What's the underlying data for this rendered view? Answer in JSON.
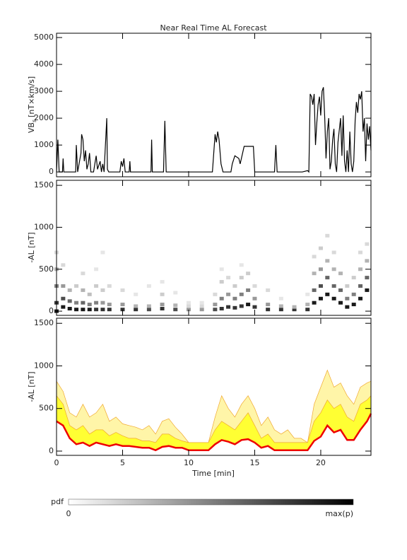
{
  "chart_data": [
    {
      "type": "line",
      "title": "Near Real Time AL Forecast",
      "y_label_main": "VB",
      "y_label_sub": "s",
      "y_label_unit": "[nT×km/s]",
      "color": "#000000",
      "xlim": [
        0,
        23.8
      ],
      "xticks": [
        0,
        5,
        10,
        15,
        20
      ],
      "ylim": [
        -180,
        5160
      ],
      "yticks": [
        0,
        1000,
        2000,
        3000,
        4000,
        5000
      ],
      "x": [
        0,
        0.1,
        0.2,
        0.45,
        0.5,
        0.55,
        1.45,
        1.5,
        1.6,
        1.85,
        1.9,
        2.0,
        2.1,
        2.2,
        2.3,
        2.4,
        2.5,
        2.6,
        2.8,
        2.9,
        3.0,
        3.1,
        3.3,
        3.4,
        3.5,
        3.6,
        3.8,
        3.85,
        3.95,
        4.8,
        4.9,
        5.0,
        5.1,
        5.2,
        5.5,
        5.55,
        5.6,
        7.15,
        7.2,
        7.25,
        8.1,
        8.2,
        8.3,
        11.8,
        12.0,
        12.1,
        12.2,
        12.3,
        12.45,
        12.6,
        13.2,
        13.3,
        13.5,
        13.8,
        13.9,
        14.2,
        14.9,
        15.0,
        15.3,
        16.5,
        16.6,
        16.7,
        18.6,
        19.0,
        19.1,
        19.2,
        19.3,
        19.4,
        19.5,
        19.6,
        19.7,
        19.8,
        19.9,
        20.0,
        20.1,
        20.2,
        20.3,
        20.4,
        20.5,
        20.6,
        20.7,
        20.8,
        20.9,
        21.0,
        21.1,
        21.2,
        21.3,
        21.5,
        21.6,
        21.7,
        21.8,
        21.9,
        22.0,
        22.1,
        22.2,
        22.3,
        22.4,
        22.5,
        22.6,
        22.7,
        22.8,
        22.9,
        23.0,
        23.1,
        23.2,
        23.3,
        23.4,
        23.5,
        23.6,
        23.7,
        23.8
      ],
      "values": [
        0,
        1200,
        0,
        0,
        500,
        0,
        0,
        1000,
        0,
        700,
        1400,
        1200,
        400,
        800,
        100,
        300,
        700,
        0,
        0,
        300,
        600,
        100,
        400,
        0,
        300,
        0,
        2000,
        100,
        0,
        0,
        400,
        200,
        500,
        0,
        0,
        400,
        0,
        0,
        1200,
        0,
        0,
        1900,
        0,
        0,
        1400,
        1100,
        1500,
        1200,
        300,
        0,
        0,
        300,
        600,
        500,
        300,
        950,
        950,
        0,
        0,
        0,
        1000,
        0,
        0,
        50,
        0,
        2900,
        2800,
        2500,
        2900,
        1000,
        1800,
        2500,
        2800,
        2100,
        3000,
        3150,
        2000,
        500,
        1500,
        2000,
        100,
        400,
        1200,
        1600,
        300,
        0,
        1100,
        2000,
        600,
        2100,
        400,
        0,
        800,
        0,
        1500,
        300,
        0,
        400,
        1900,
        2600,
        2200,
        2900,
        2700,
        3000,
        1500,
        2000,
        400,
        1800,
        1200,
        1700,
        800
      ]
    },
    {
      "type": "heatmap",
      "y_label": "-AL [nT]",
      "xlim": [
        0,
        23.8
      ],
      "xticks": [
        0,
        5,
        10,
        15,
        20
      ],
      "ylim": [
        -50,
        1560
      ],
      "yticks": [
        0,
        500,
        1000,
        1500
      ],
      "x": [
        0,
        0,
        0,
        0,
        0,
        0.5,
        0.5,
        0.5,
        0.5,
        1,
        1,
        1,
        1.5,
        1.5,
        1.5,
        2,
        2,
        2,
        2,
        2.5,
        2.5,
        2.5,
        3,
        3,
        3,
        3,
        3.5,
        3.5,
        3.5,
        3.5,
        4,
        4,
        4,
        5,
        5,
        5,
        6,
        6,
        6,
        7,
        7,
        7,
        8,
        8,
        8,
        8,
        9,
        9,
        9,
        10,
        10,
        10,
        11,
        11,
        11,
        12,
        12,
        12,
        12.5,
        12.5,
        12.5,
        12.5,
        13,
        13,
        13,
        13.5,
        13.5,
        13.5,
        14,
        14,
        14,
        14,
        14.5,
        14.5,
        14.5,
        15,
        15,
        15,
        16,
        16,
        16,
        17,
        17,
        17,
        18,
        18,
        19,
        19,
        19,
        19.5,
        19.5,
        19.5,
        19.5,
        20,
        20,
        20,
        20,
        20.5,
        20.5,
        20.5,
        20.5,
        21,
        21,
        21,
        21,
        21.5,
        21.5,
        21.5,
        22,
        22,
        22,
        22.5,
        22.5,
        22.5,
        23,
        23,
        23,
        23,
        23.5,
        23.5,
        23.5,
        23.5
      ],
      "y": [
        0,
        100,
        300,
        500,
        700,
        50,
        150,
        300,
        550,
        30,
        120,
        250,
        20,
        100,
        300,
        20,
        100,
        250,
        450,
        20,
        80,
        200,
        20,
        100,
        300,
        500,
        20,
        100,
        250,
        700,
        20,
        80,
        300,
        20,
        80,
        250,
        20,
        60,
        200,
        20,
        60,
        300,
        30,
        80,
        200,
        350,
        20,
        70,
        220,
        20,
        60,
        100,
        20,
        60,
        100,
        20,
        80,
        200,
        30,
        150,
        350,
        500,
        50,
        200,
        400,
        40,
        150,
        300,
        60,
        200,
        400,
        550,
        80,
        250,
        450,
        50,
        150,
        300,
        20,
        80,
        250,
        20,
        60,
        150,
        20,
        50,
        20,
        80,
        200,
        100,
        250,
        450,
        650,
        150,
        300,
        500,
        750,
        200,
        400,
        600,
        900,
        150,
        300,
        500,
        700,
        100,
        250,
        450,
        50,
        150,
        300,
        80,
        200,
        400,
        150,
        300,
        500,
        700,
        250,
        400,
        600,
        800
      ],
      "p": [
        0.9,
        0.8,
        0.5,
        0.3,
        0.15,
        0.9,
        0.7,
        0.4,
        0.15,
        0.9,
        0.6,
        0.3,
        0.9,
        0.5,
        0.2,
        0.9,
        0.6,
        0.3,
        0.15,
        0.9,
        0.5,
        0.25,
        0.8,
        0.5,
        0.2,
        0.1,
        0.8,
        0.4,
        0.2,
        0.1,
        0.8,
        0.4,
        0.15,
        0.8,
        0.4,
        0.15,
        0.8,
        0.3,
        0.1,
        0.7,
        0.3,
        0.1,
        0.8,
        0.4,
        0.2,
        0.1,
        0.7,
        0.3,
        0.1,
        0.4,
        0.15,
        0.1,
        0.4,
        0.15,
        0.1,
        0.7,
        0.4,
        0.15,
        0.8,
        0.5,
        0.2,
        0.1,
        0.8,
        0.4,
        0.15,
        0.8,
        0.5,
        0.2,
        0.8,
        0.5,
        0.2,
        0.1,
        0.9,
        0.5,
        0.2,
        0.8,
        0.4,
        0.15,
        0.8,
        0.4,
        0.15,
        0.8,
        0.3,
        0.1,
        0.8,
        0.3,
        0.8,
        0.3,
        0.1,
        0.9,
        0.6,
        0.3,
        0.15,
        0.9,
        0.7,
        0.4,
        0.2,
        0.9,
        0.6,
        0.3,
        0.15,
        0.9,
        0.6,
        0.3,
        0.15,
        0.9,
        0.6,
        0.3,
        0.9,
        0.5,
        0.2,
        0.9,
        0.5,
        0.2,
        0.9,
        0.6,
        0.3,
        0.15,
        0.9,
        0.6,
        0.3,
        0.15
      ],
      "colorbar": {
        "label": "pdf",
        "min_label": "0",
        "max_label": "max(p)"
      }
    },
    {
      "type": "area",
      "y_label": "-AL [nT]",
      "x_label": "Time [min]",
      "xlim": [
        0,
        23.8
      ],
      "xticks": [
        0,
        5,
        10,
        15,
        20
      ],
      "ylim": [
        -50,
        1560
      ],
      "yticks": [
        0,
        500,
        1000,
        1500
      ],
      "x": [
        0,
        0.5,
        1,
        1.5,
        2,
        2.5,
        3,
        3.5,
        4,
        4.5,
        5,
        5.5,
        6,
        6.5,
        7,
        7.5,
        8,
        8.5,
        9,
        9.5,
        10,
        10.5,
        11,
        11.5,
        12,
        12.5,
        13,
        13.5,
        14,
        14.5,
        15,
        15.5,
        16,
        16.5,
        17,
        17.5,
        18,
        18.5,
        19,
        19.5,
        20,
        20.5,
        21,
        21.5,
        22,
        22.5,
        23,
        23.5,
        23.8
      ],
      "series": [
        {
          "color": "#f0a830",
          "fill": "#fff5a8",
          "values": [
            820,
            700,
            450,
            400,
            550,
            400,
            450,
            550,
            350,
            400,
            320,
            300,
            280,
            250,
            300,
            200,
            350,
            380,
            280,
            200,
            100,
            100,
            100,
            100,
            400,
            650,
            500,
            400,
            550,
            650,
            500,
            300,
            400,
            250,
            200,
            250,
            150,
            150,
            100,
            550,
            750,
            950,
            750,
            800,
            650,
            550,
            750,
            800,
            820
          ]
        },
        {
          "color": "#f0a830",
          "fill": "#ffff33",
          "values": [
            650,
            550,
            300,
            250,
            300,
            200,
            250,
            250,
            180,
            220,
            180,
            150,
            150,
            120,
            120,
            100,
            200,
            200,
            150,
            120,
            100,
            100,
            100,
            100,
            250,
            350,
            300,
            250,
            350,
            450,
            300,
            150,
            200,
            100,
            100,
            100,
            100,
            100,
            100,
            350,
            450,
            600,
            500,
            550,
            400,
            350,
            550,
            600,
            650
          ]
        },
        {
          "color": "#ee0000",
          "values": [
            350,
            300,
            150,
            80,
            100,
            60,
            100,
            80,
            60,
            80,
            60,
            60,
            50,
            40,
            40,
            10,
            50,
            60,
            40,
            40,
            10,
            10,
            10,
            10,
            80,
            130,
            110,
            80,
            130,
            140,
            100,
            40,
            60,
            10,
            10,
            10,
            10,
            10,
            10,
            120,
            170,
            300,
            220,
            250,
            130,
            130,
            250,
            350,
            440
          ]
        }
      ]
    }
  ]
}
